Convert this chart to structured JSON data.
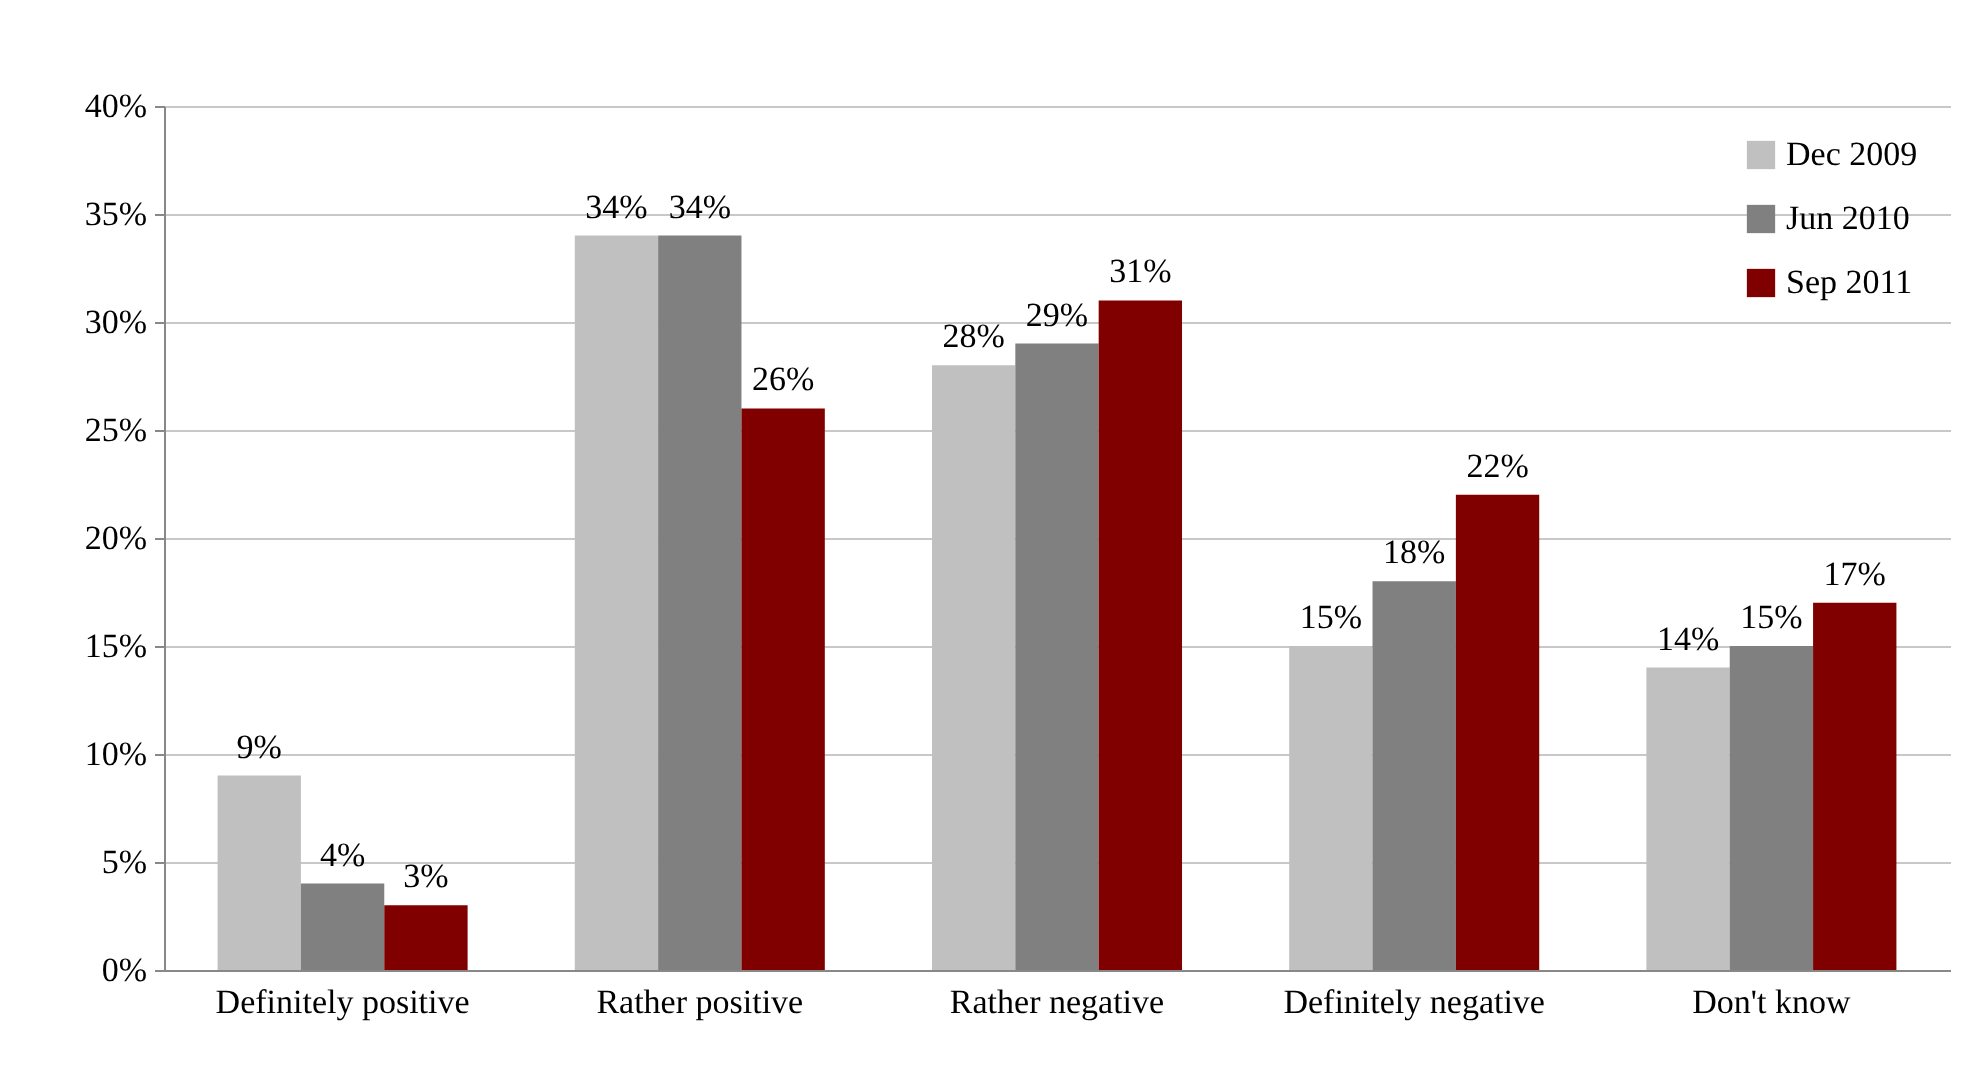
{
  "chart_data": {
    "type": "bar",
    "categories": [
      "Definitely positive",
      "Rather positive",
      "Rather negative",
      "Definitely negative",
      "Don't know"
    ],
    "series": [
      {
        "name": "Dec 2009",
        "color": "#c0c0c0",
        "values": [
          9,
          34,
          28,
          15,
          14
        ],
        "value_labels": [
          "9%",
          "34%",
          "28%",
          "15%",
          "14%"
        ]
      },
      {
        "name": "Jun 2010",
        "color": "#808080",
        "values": [
          4,
          34,
          29,
          18,
          15
        ],
        "value_labels": [
          "4%",
          "34%",
          "29%",
          "18%",
          "15%"
        ]
      },
      {
        "name": "Sep 2011",
        "color": "#800000",
        "values": [
          3,
          26,
          31,
          22,
          17
        ],
        "value_labels": [
          "3%",
          "26%",
          "31%",
          "22%",
          "17%"
        ]
      }
    ],
    "ylim": [
      0,
      40
    ],
    "yticks": [
      {
        "value": 0,
        "label": "0%"
      },
      {
        "value": 5,
        "label": "5%"
      },
      {
        "value": 10,
        "label": "10%"
      },
      {
        "value": 15,
        "label": "15%"
      },
      {
        "value": 20,
        "label": "20%"
      },
      {
        "value": 25,
        "label": "25%"
      },
      {
        "value": 30,
        "label": "30%"
      },
      {
        "value": 35,
        "label": "35%"
      },
      {
        "value": 40,
        "label": "40%"
      }
    ],
    "grid": "y",
    "legend": "top right"
  }
}
